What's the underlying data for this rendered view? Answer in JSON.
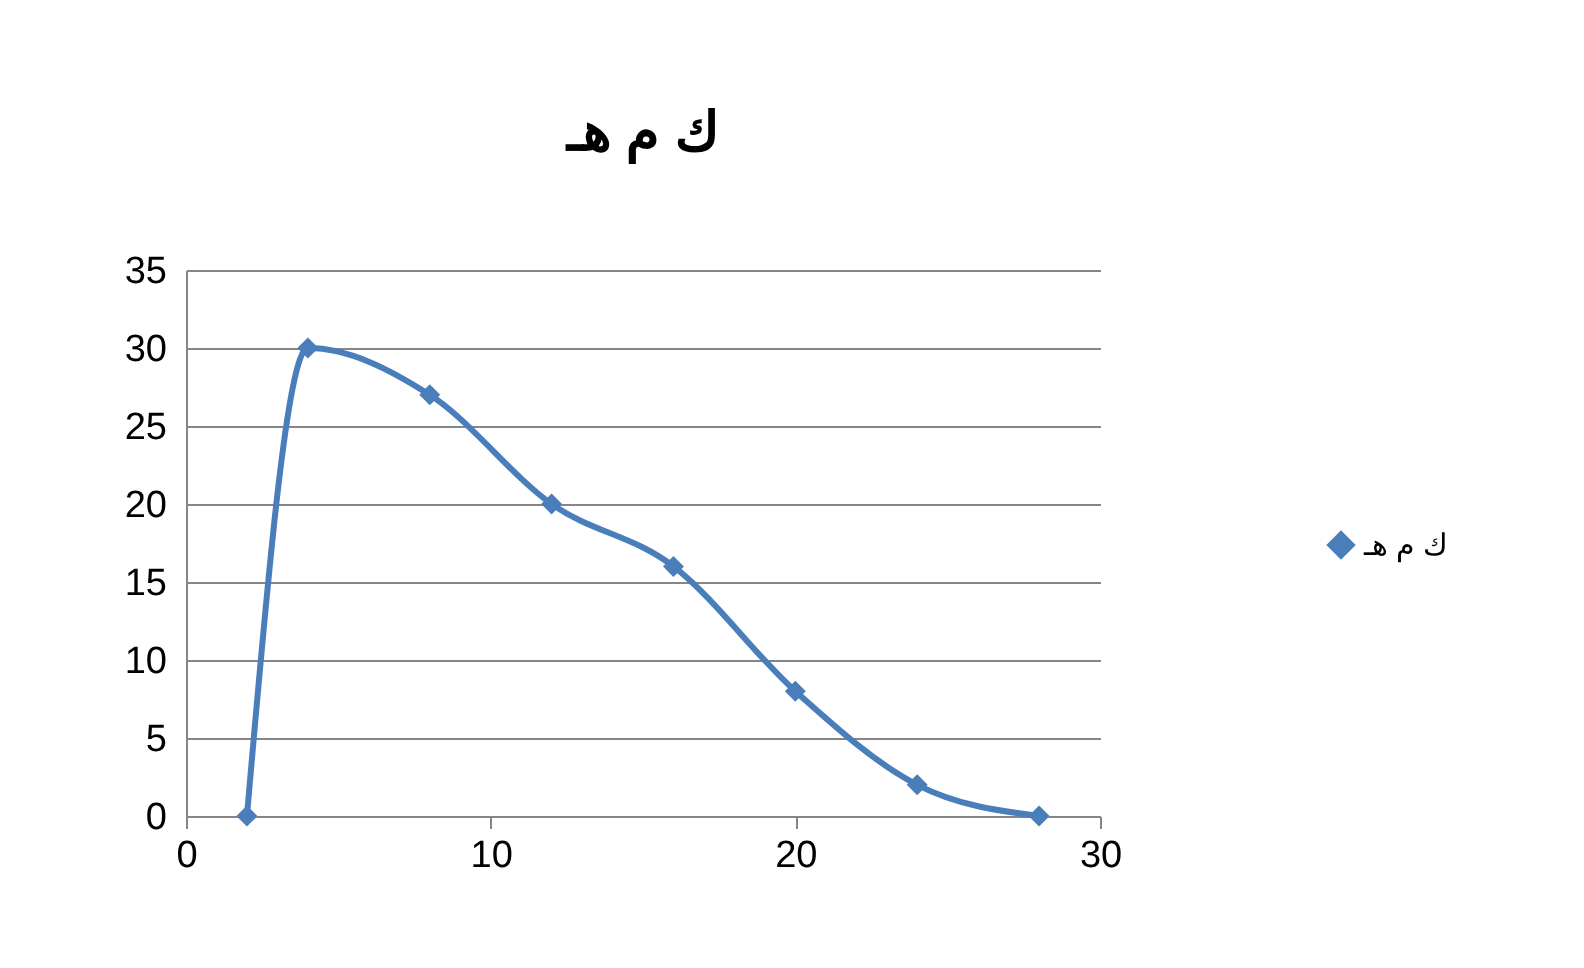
{
  "chart_data": {
    "type": "line",
    "title": "ك م هـ",
    "x": [
      2,
      4,
      8,
      12,
      16,
      20,
      24,
      28
    ],
    "series": [
      {
        "name": "ك م هـ",
        "color": "#4a7ebb",
        "values": [
          0,
          30,
          27,
          20,
          16,
          8,
          2,
          0
        ]
      }
    ],
    "xlim": [
      0,
      30
    ],
    "xticks": [
      0,
      10,
      20,
      30
    ],
    "ylim": [
      0,
      35
    ],
    "yticks": [
      0,
      5,
      10,
      15,
      20,
      25,
      30,
      35
    ],
    "grid": "y",
    "legend": "right",
    "marker": "diamond"
  }
}
